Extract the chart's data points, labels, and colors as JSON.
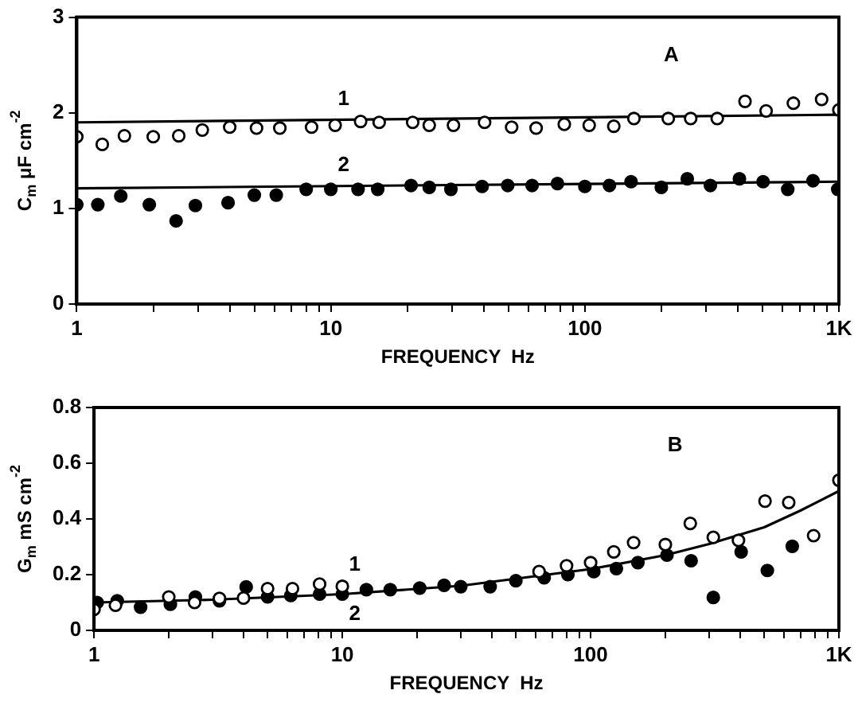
{
  "chart_data": [
    {
      "type": "scatter",
      "xlabel": "FREQUENCY  Hz",
      "ylabel": "C$_{m}$ μF cm$^{-2}$",
      "log": "x",
      "xlim": [
        1,
        1000
      ],
      "ylim": [
        0,
        3
      ],
      "yticks": [
        0,
        1,
        2,
        3
      ],
      "xticks": [
        1,
        {
          "value": 2,
          "label": null
        },
        {
          "value": 3,
          "label": null
        },
        {
          "value": 4,
          "label": null
        },
        {
          "value": 5,
          "label": null
        },
        {
          "value": 6,
          "label": null
        },
        {
          "value": 7,
          "label": null
        },
        {
          "value": 8,
          "label": null
        },
        {
          "value": 9,
          "label": null
        },
        10,
        {
          "value": 20,
          "label": null
        },
        {
          "value": 30,
          "label": null
        },
        {
          "value": 40,
          "label": null
        },
        {
          "value": 50,
          "label": null
        },
        {
          "value": 60,
          "label": null
        },
        {
          "value": 70,
          "label": null
        },
        {
          "value": 80,
          "label": null
        },
        {
          "value": 90,
          "label": null
        },
        100,
        {
          "value": 200,
          "label": null
        },
        {
          "value": 300,
          "label": null
        },
        {
          "value": 400,
          "label": null
        },
        {
          "value": 500,
          "label": null
        },
        {
          "value": 600,
          "label": null
        },
        {
          "value": 700,
          "label": null
        },
        {
          "value": 800,
          "label": null
        },
        {
          "value": 900,
          "label": null
        },
        {
          "value": 1000,
          "label": "1K"
        }
      ],
      "grid": false,
      "legend": false,
      "annotations": [
        "A"
      ],
      "series": [
        {
          "marker": "circle",
          "color": "#000000",
          "x": [
            1.0,
            1.26,
            1.54,
            2.0,
            2.52,
            3.12,
            4.0,
            5.1,
            6.3,
            8.4,
            10.4,
            13.1,
            15.5,
            21,
            24.4,
            30.4,
            40.3,
            51.5,
            64.3,
            83,
            104,
            130,
            156,
            213,
            261,
            332,
            427,
            517,
            662,
            855,
            1000
          ],
          "values": [
            1.75,
            1.67,
            1.76,
            1.75,
            1.76,
            1.82,
            1.85,
            1.84,
            1.84,
            1.85,
            1.87,
            1.91,
            1.9,
            1.9,
            1.87,
            1.87,
            1.9,
            1.85,
            1.84,
            1.88,
            1.87,
            1.86,
            1.94,
            1.94,
            1.94,
            1.94,
            2.12,
            2.02,
            2.1,
            2.14,
            2.03
          ]
        },
        {
          "marker": "circle",
          "color": "#000000",
          "x": [
            1.0,
            1.21,
            1.49,
            1.93,
            2.46,
            2.93,
            3.94,
            5.0,
            6.1,
            8.0,
            10,
            12.8,
            15.3,
            20.7,
            24.4,
            29.7,
            39.4,
            49.7,
            62,
            78,
            100,
            125,
            152,
            200,
            253,
            312,
            406,
            503,
            629,
            791,
            990
          ],
          "values": [
            1.04,
            1.04,
            1.13,
            1.04,
            0.87,
            1.03,
            1.06,
            1.14,
            1.14,
            1.2,
            1.2,
            1.2,
            1.2,
            1.24,
            1.22,
            1.2,
            1.23,
            1.24,
            1.24,
            1.26,
            1.23,
            1.24,
            1.28,
            1.22,
            1.31,
            1.24,
            1.31,
            1.28,
            1.2,
            1.29,
            1.2
          ]
        },
        {
          "type": "line",
          "name": "1",
          "color": "#000000",
          "x": [
            1,
            1000
          ],
          "values": [
            1.9,
            1.98
          ]
        },
        {
          "type": "line",
          "name": "2",
          "color": "#000000",
          "x": [
            1,
            1000
          ],
          "values": [
            1.21,
            1.28
          ]
        }
      ]
    },
    {
      "type": "scatter",
      "xlabel": "FREQUENCY  Hz",
      "ylabel": "G$_{m}$ mS cm$^{-2}$",
      "log": "x",
      "xlim": [
        1,
        1000
      ],
      "ylim": [
        0,
        0.8
      ],
      "yticks": [
        0,
        {
          "value": 0.2,
          "label": "0.2"
        },
        {
          "value": 0.4,
          "label": "0.4"
        },
        {
          "value": 0.6,
          "label": "0.6"
        },
        {
          "value": 0.8,
          "label": "0.8"
        }
      ],
      "xticks": [
        1,
        {
          "value": 2,
          "label": null
        },
        {
          "value": 3,
          "label": null
        },
        {
          "value": 4,
          "label": null
        },
        {
          "value": 5,
          "label": null
        },
        {
          "value": 6,
          "label": null
        },
        {
          "value": 7,
          "label": null
        },
        {
          "value": 8,
          "label": null
        },
        {
          "value": 9,
          "label": null
        },
        10,
        {
          "value": 20,
          "label": null
        },
        {
          "value": 30,
          "label": null
        },
        {
          "value": 40,
          "label": null
        },
        {
          "value": 50,
          "label": null
        },
        {
          "value": 60,
          "label": null
        },
        {
          "value": 70,
          "label": null
        },
        {
          "value": 80,
          "label": null
        },
        {
          "value": 90,
          "label": null
        },
        100,
        {
          "value": 200,
          "label": null
        },
        {
          "value": 300,
          "label": null
        },
        {
          "value": 400,
          "label": null
        },
        {
          "value": 500,
          "label": null
        },
        {
          "value": 600,
          "label": null
        },
        {
          "value": 700,
          "label": null
        },
        {
          "value": 800,
          "label": null
        },
        {
          "value": 900,
          "label": null
        },
        {
          "value": 1000,
          "label": "1K"
        }
      ],
      "grid": false,
      "legend": false,
      "annotations": [
        "B"
      ],
      "series": [
        {
          "name": "1",
          "marker": "circle",
          "color": "#000000",
          "x": [
            1.0,
            1.22,
            2.0,
            2.54,
            3.2,
            4.0,
            5.0,
            6.3,
            8.1,
            10,
            62,
            80,
            100,
            124,
            149,
            200,
            252,
            312,
            394,
            504,
            628,
            791,
            1000
          ],
          "values": [
            0.075,
            0.09,
            0.12,
            0.1,
            0.115,
            0.116,
            0.15,
            0.15,
            0.166,
            0.158,
            0.211,
            0.232,
            0.243,
            0.282,
            0.315,
            0.308,
            0.384,
            0.334,
            0.323,
            0.464,
            0.459,
            0.34,
            0.539
          ]
        },
        {
          "name": "2",
          "marker": "circle",
          "color": "#000000",
          "x": [
            1.03,
            1.24,
            1.54,
            2.03,
            2.56,
            3.2,
            4.1,
            5.0,
            6.2,
            8.1,
            10,
            12.5,
            15.6,
            20.5,
            25.7,
            30,
            39.4,
            50,
            65,
            81,
            103,
            127,
            155,
            203,
            254,
            312,
            404,
            515,
            649
          ],
          "values": [
            0.1,
            0.106,
            0.083,
            0.094,
            0.12,
            0.106,
            0.156,
            0.12,
            0.125,
            0.13,
            0.13,
            0.146,
            0.146,
            0.152,
            0.162,
            0.157,
            0.157,
            0.178,
            0.189,
            0.2,
            0.211,
            0.222,
            0.243,
            0.27,
            0.25,
            0.118,
            0.282,
            0.215,
            0.302
          ]
        },
        {
          "type": "line",
          "color": "#000000",
          "x": [
            1,
            3,
            10,
            30,
            100,
            200,
            300,
            500,
            700,
            1000
          ],
          "values": [
            0.1,
            0.11,
            0.13,
            0.16,
            0.22,
            0.27,
            0.31,
            0.37,
            0.43,
            0.5
          ]
        }
      ]
    }
  ]
}
